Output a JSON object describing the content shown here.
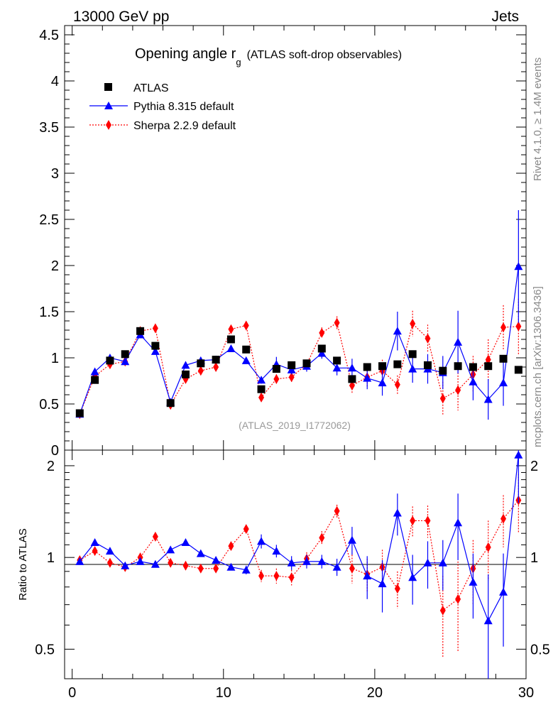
{
  "header": {
    "left": "13000 GeV pp",
    "right": "Jets"
  },
  "side_labels": {
    "top": "Rivet 4.1.0, ≥ 1.4M events",
    "bottom": "mcplots.cern.ch [arXiv:1306.3436]"
  },
  "chart_data": {
    "type": "scatter",
    "title": "Opening angle r",
    "title_sub": "g",
    "title_suffix": "(ATLAS soft-drop observables)",
    "watermark": "(ATLAS_2019_I1772062)",
    "xlim": [
      -0.5,
      30
    ],
    "ylim": [
      0,
      4.6
    ],
    "ratio_ylim": [
      0.4,
      2.25
    ],
    "ylabel_ratio": "Ratio to ATLAS",
    "x_ticks": [
      0,
      10,
      20,
      30
    ],
    "y_ticks": [
      0,
      0.5,
      1,
      1.5,
      2,
      2.5,
      3,
      3.5,
      4,
      4.5
    ],
    "ratio_ticks": [
      0.5,
      1,
      2
    ],
    "x": [
      0.5,
      1.5,
      2.5,
      3.5,
      4.5,
      5.5,
      6.5,
      7.5,
      8.5,
      9.5,
      10.5,
      11.5,
      12.5,
      13.5,
      14.5,
      15.5,
      16.5,
      17.5,
      18.5,
      19.5,
      20.5,
      21.5,
      22.5,
      23.5,
      24.5,
      25.5,
      26.5,
      27.5,
      28.5,
      29.5
    ],
    "series": [
      {
        "name": "ATLAS",
        "color": "#000000",
        "marker": "square",
        "values": [
          0.4,
          0.76,
          0.97,
          1.04,
          1.29,
          1.13,
          0.51,
          0.82,
          0.94,
          0.98,
          1.2,
          1.09,
          0.66,
          0.88,
          0.92,
          0.94,
          1.1,
          0.97,
          0.77,
          0.9,
          0.91,
          0.93,
          1.04,
          0.92,
          0.86,
          0.91,
          0.9,
          0.91,
          0.99,
          0.87
        ],
        "errors": [
          0,
          0,
          0,
          0,
          0,
          0,
          0,
          0,
          0,
          0,
          0,
          0,
          0,
          0,
          0,
          0,
          0,
          0,
          0,
          0,
          0,
          0,
          0,
          0,
          0,
          0,
          0,
          0,
          0,
          0
        ]
      },
      {
        "name": "Pythia 8.315 default",
        "color": "#0000ff",
        "marker": "triangle",
        "line": "solid",
        "values": [
          0.39,
          0.85,
          1.0,
          0.96,
          1.25,
          1.07,
          0.52,
          0.92,
          0.97,
          0.98,
          1.1,
          0.97,
          0.76,
          0.93,
          0.87,
          0.91,
          1.05,
          0.89,
          0.89,
          0.78,
          0.73,
          1.29,
          0.88,
          0.88,
          0.84,
          1.17,
          0.74,
          0.55,
          0.73,
          1.99
        ],
        "errors": [
          0.02,
          0.02,
          0.02,
          0.02,
          0.02,
          0.02,
          0.02,
          0.02,
          0.02,
          0.02,
          0.03,
          0.03,
          0.04,
          0.08,
          0.05,
          0.06,
          0.06,
          0.08,
          0.1,
          0.12,
          0.14,
          0.21,
          0.15,
          0.16,
          0.18,
          0.34,
          0.2,
          0.22,
          0.25,
          0.61
        ]
      },
      {
        "name": "Sherpa 2.2.9 default",
        "color": "#ff0000",
        "marker": "diamond",
        "line": "dotted",
        "values": [
          0.39,
          0.8,
          0.93,
          0.96,
          1.29,
          1.32,
          0.49,
          0.77,
          0.86,
          0.9,
          1.31,
          1.35,
          0.57,
          0.77,
          0.79,
          0.93,
          1.27,
          1.38,
          0.7,
          0.79,
          0.86,
          0.71,
          1.37,
          1.21,
          0.56,
          0.65,
          0.82,
          0.98,
          1.33,
          1.34
        ],
        "errors": [
          0.02,
          0.02,
          0.02,
          0.02,
          0.02,
          0.02,
          0.02,
          0.02,
          0.02,
          0.03,
          0.03,
          0.03,
          0.04,
          0.05,
          0.05,
          0.05,
          0.06,
          0.07,
          0.09,
          0.1,
          0.12,
          0.1,
          0.14,
          0.15,
          0.18,
          0.22,
          0.2,
          0.22,
          0.24,
          0.3
        ]
      }
    ],
    "ratio_series": [
      {
        "name": "Pythia 8.315 default",
        "values": [
          0.97,
          1.12,
          1.05,
          0.94,
          0.97,
          0.95,
          1.06,
          1.12,
          1.03,
          0.98,
          0.93,
          0.91,
          1.13,
          1.05,
          0.96,
          0.97,
          0.97,
          0.93,
          1.14,
          0.87,
          0.82,
          1.4,
          0.86,
          0.96,
          0.96,
          1.3,
          0.83,
          0.62,
          0.77,
          2.17
        ],
        "errors": [
          0.01,
          0.01,
          0.01,
          0.01,
          0.01,
          0.01,
          0.02,
          0.02,
          0.02,
          0.02,
          0.02,
          0.03,
          0.06,
          0.05,
          0.05,
          0.05,
          0.05,
          0.06,
          0.12,
          0.14,
          0.16,
          0.22,
          0.16,
          0.17,
          0.18,
          0.32,
          0.2,
          0.26,
          0.26,
          0.66
        ]
      },
      {
        "name": "Sherpa 2.2.9 default",
        "values": [
          0.98,
          1.05,
          0.96,
          0.93,
          1.0,
          1.17,
          0.96,
          0.94,
          0.92,
          0.92,
          1.09,
          1.24,
          0.87,
          0.87,
          0.86,
          0.99,
          1.16,
          1.42,
          0.92,
          0.88,
          0.93,
          0.79,
          1.32,
          1.32,
          0.67,
          0.73,
          0.92,
          1.08,
          1.34,
          1.54
        ],
        "errors": [
          0.01,
          0.01,
          0.01,
          0.01,
          0.01,
          0.01,
          0.02,
          0.02,
          0.02,
          0.02,
          0.02,
          0.03,
          0.04,
          0.05,
          0.05,
          0.05,
          0.06,
          0.07,
          0.1,
          0.11,
          0.13,
          0.11,
          0.15,
          0.16,
          0.2,
          0.24,
          0.22,
          0.24,
          0.26,
          0.34
        ]
      }
    ]
  }
}
